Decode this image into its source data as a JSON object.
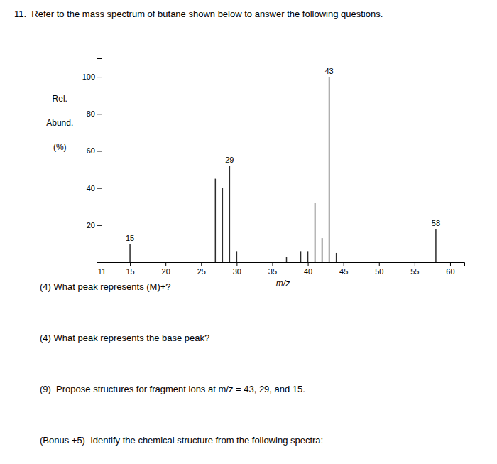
{
  "chart_data": {
    "type": "stem",
    "title": "11.  Refer to the mass spectrum of butane shown below to answer the following questions.",
    "xlabel": "m/z",
    "ylabel": [
      "Rel.",
      "Abund.",
      "(%)"
    ],
    "x": [
      15,
      27,
      28,
      29,
      30,
      37,
      39,
      40,
      41,
      42,
      43,
      44,
      58
    ],
    "values": [
      10,
      45,
      40,
      52,
      6,
      3,
      6,
      6,
      32,
      13,
      100,
      5,
      18
    ],
    "point_labels": [
      "15",
      null,
      null,
      "29",
      null,
      null,
      null,
      null,
      null,
      null,
      "43",
      null,
      "58"
    ],
    "color": "#2c2c2c",
    "xlim": [
      11,
      62
    ],
    "ylim": [
      0,
      110
    ],
    "xticks": [
      11,
      15,
      20,
      25,
      30,
      35,
      40,
      45,
      50,
      55,
      60
    ],
    "yticks": [
      20,
      40,
      60,
      80,
      100
    ],
    "questions": [
      "(4) What peak represents (M)+?",
      "(4) What peak represents the base peak?",
      "(9)  Propose structures for fragment ions at m/z = 43, 29, and 15.",
      "(Bonus +5)  Identify the chemical structure from the following spectra:"
    ]
  }
}
